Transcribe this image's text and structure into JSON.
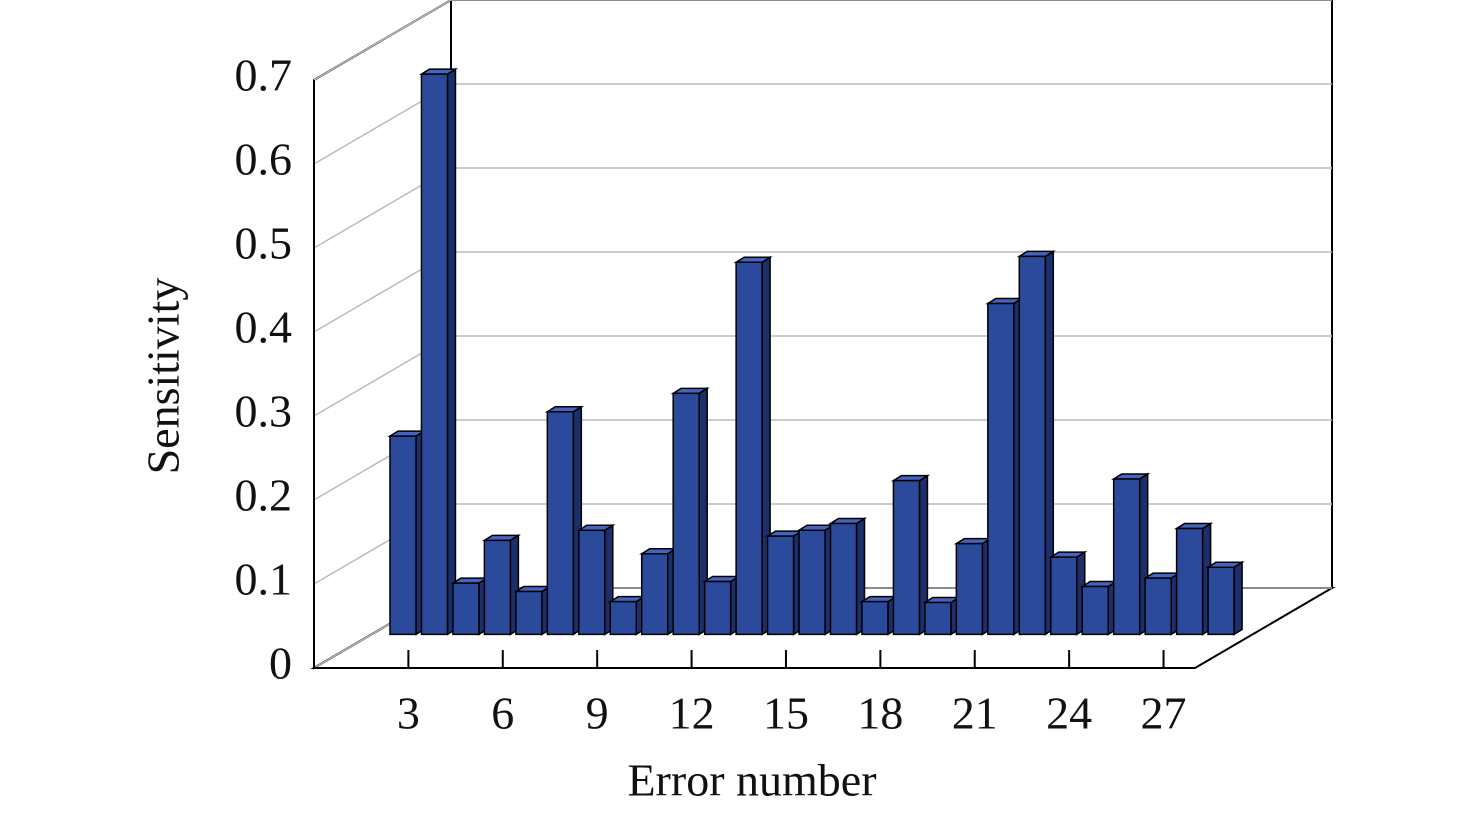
{
  "chart_data": {
    "type": "bar3d",
    "xlabel": "Error number",
    "ylabel": "Sensitivity",
    "x": [
      1,
      2,
      3,
      4,
      5,
      6,
      7,
      8,
      9,
      10,
      11,
      12,
      13,
      14,
      15,
      16,
      17,
      18,
      19,
      20,
      21,
      22,
      23,
      24,
      25,
      26,
      27
    ],
    "values": [
      0.236,
      0.667,
      0.061,
      0.112,
      0.051,
      0.265,
      0.124,
      0.039,
      0.096,
      0.287,
      0.063,
      0.443,
      0.117,
      0.124,
      0.132,
      0.039,
      0.183,
      0.038,
      0.108,
      0.394,
      0.45,
      0.092,
      0.057,
      0.185,
      0.067,
      0.126,
      0.08
    ],
    "color": "#2b4a9c",
    "xlim": [
      0,
      28
    ],
    "xticks": [
      3,
      6,
      9,
      12,
      15,
      18,
      21,
      24,
      27
    ],
    "ylim": [
      0,
      0.7
    ],
    "yticks": [
      0,
      0.1,
      0.2,
      0.3,
      0.4,
      0.5,
      0.6,
      0.7
    ],
    "grid": true
  }
}
